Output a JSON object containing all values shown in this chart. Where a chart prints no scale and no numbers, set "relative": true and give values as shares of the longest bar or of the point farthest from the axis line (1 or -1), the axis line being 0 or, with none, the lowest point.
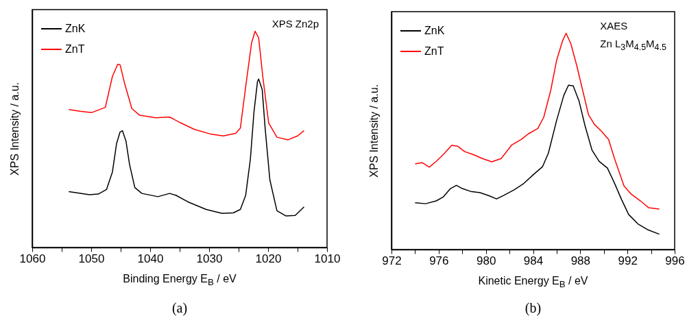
{
  "chart_data": [
    {
      "type": "line",
      "title": "(a)",
      "xlabel": "Binding Energy  E$_{B}$ / eV",
      "ylabel": "XPS Intensity / a.u.",
      "relative": true,
      "legend": "top left",
      "annotations": [
        "XPS Zn2p"
      ],
      "xlim": [
        1060,
        1010
      ],
      "xticks": [
        1060,
        {
          "value": 1055,
          "label": null
        },
        1050,
        {
          "value": 1045,
          "label": null
        },
        1040,
        {
          "value": 1035,
          "label": null
        },
        1030,
        {
          "value": 1025,
          "label": null
        },
        1020,
        {
          "value": 1015,
          "label": null
        },
        1010
      ],
      "series": [
        {
          "name": "ZnK",
          "color": "#000000",
          "x": [
            1053.8,
            1050.3,
            1048.8,
            1047.4,
            1046.4,
            1045.7,
            1045.1,
            1044.7,
            1044.1,
            1043.5,
            1042.6,
            1041.4,
            1038.7,
            1036.7,
            1035.6,
            1033.6,
            1030.5,
            1027.8,
            1025.9,
            1024.7,
            1023.8,
            1023.0,
            1022.4,
            1021.8,
            1021.6,
            1021.0,
            1020.5,
            1019.7,
            1018.5,
            1017.0,
            1015.4,
            1013.9
          ],
          "values": [
            0.258,
            0.244,
            0.247,
            0.268,
            0.349,
            0.48,
            0.534,
            0.54,
            0.492,
            0.385,
            0.277,
            0.25,
            0.235,
            0.25,
            0.241,
            0.211,
            0.176,
            0.158,
            0.16,
            0.176,
            0.241,
            0.409,
            0.624,
            0.767,
            0.779,
            0.731,
            0.552,
            0.313,
            0.17,
            0.146,
            0.148,
            0.188
          ]
        },
        {
          "name": "ZnT",
          "color": "#ff0000",
          "x": [
            1053.8,
            1051.9,
            1049.9,
            1047.6,
            1046.4,
            1045.5,
            1045.1,
            1044.3,
            1043.1,
            1041.8,
            1039.1,
            1036.7,
            1034.8,
            1032.5,
            1029.8,
            1027.6,
            1025.5,
            1024.7,
            1023.8,
            1022.8,
            1022.2,
            1021.6,
            1020.9,
            1019.9,
            1018.5,
            1016.6,
            1015.0,
            1013.9
          ],
          "values": [
            0.638,
            0.63,
            0.624,
            0.648,
            0.791,
            0.847,
            0.845,
            0.755,
            0.642,
            0.612,
            0.6,
            0.603,
            0.576,
            0.546,
            0.525,
            0.516,
            0.528,
            0.552,
            0.743,
            0.946,
            1.0,
            0.97,
            0.791,
            0.576,
            0.51,
            0.498,
            0.516,
            0.54
          ]
        }
      ]
    },
    {
      "type": "line",
      "title": "(b)",
      "xlabel": "Kinetic Energy  E$_{B}$ / eV",
      "ylabel": "XPS Intensity / a.u.",
      "relative": true,
      "legend": "top left",
      "annotations": [
        "XAES",
        "Zn L$_{3}$M$_{4.5}$M$_{4.5}$"
      ],
      "xlim": [
        972,
        996
      ],
      "xticks": [
        972,
        {
          "value": 974,
          "label": null
        },
        976,
        {
          "value": 978,
          "label": null
        },
        980,
        {
          "value": 982,
          "label": null
        },
        984,
        {
          "value": 986,
          "label": null
        },
        988,
        {
          "value": 990,
          "label": null
        },
        992,
        {
          "value": 994,
          "label": null
        },
        996
      ],
      "series": [
        {
          "name": "ZnK",
          "color": "#000000",
          "x": [
            974.0,
            974.9,
            975.8,
            976.4,
            977.0,
            977.5,
            978.0,
            978.7,
            979.5,
            980.3,
            980.9,
            981.5,
            982.4,
            983.2,
            984.0,
            984.8,
            985.3,
            986.0,
            986.6,
            987.0,
            987.4,
            987.9,
            988.4,
            989.0,
            989.6,
            990.3,
            990.9,
            991.5,
            992.1,
            992.9,
            993.7,
            994.7
          ],
          "values": [
            0.216,
            0.212,
            0.225,
            0.244,
            0.282,
            0.297,
            0.282,
            0.269,
            0.263,
            0.248,
            0.234,
            0.25,
            0.276,
            0.305,
            0.345,
            0.383,
            0.446,
            0.598,
            0.712,
            0.76,
            0.757,
            0.686,
            0.573,
            0.459,
            0.408,
            0.377,
            0.307,
            0.231,
            0.162,
            0.118,
            0.092,
            0.071
          ]
        },
        {
          "name": "ZnT",
          "color": "#ff0000",
          "x": [
            974.0,
            974.6,
            975.2,
            975.8,
            976.4,
            977.1,
            977.6,
            978.2,
            978.9,
            979.7,
            980.5,
            981.3,
            982.2,
            983.0,
            983.6,
            984.4,
            984.9,
            985.5,
            986.0,
            986.5,
            986.8,
            987.2,
            987.7,
            988.2,
            988.7,
            989.2,
            989.8,
            990.4,
            990.9,
            991.7,
            992.3,
            993.1,
            993.8,
            994.7
          ],
          "values": [
            0.396,
            0.402,
            0.381,
            0.408,
            0.44,
            0.482,
            0.478,
            0.453,
            0.44,
            0.421,
            0.406,
            0.421,
            0.484,
            0.509,
            0.535,
            0.56,
            0.611,
            0.737,
            0.876,
            0.965,
            1.0,
            0.952,
            0.851,
            0.737,
            0.623,
            0.579,
            0.547,
            0.509,
            0.421,
            0.295,
            0.257,
            0.225,
            0.193,
            0.187
          ]
        }
      ]
    }
  ]
}
